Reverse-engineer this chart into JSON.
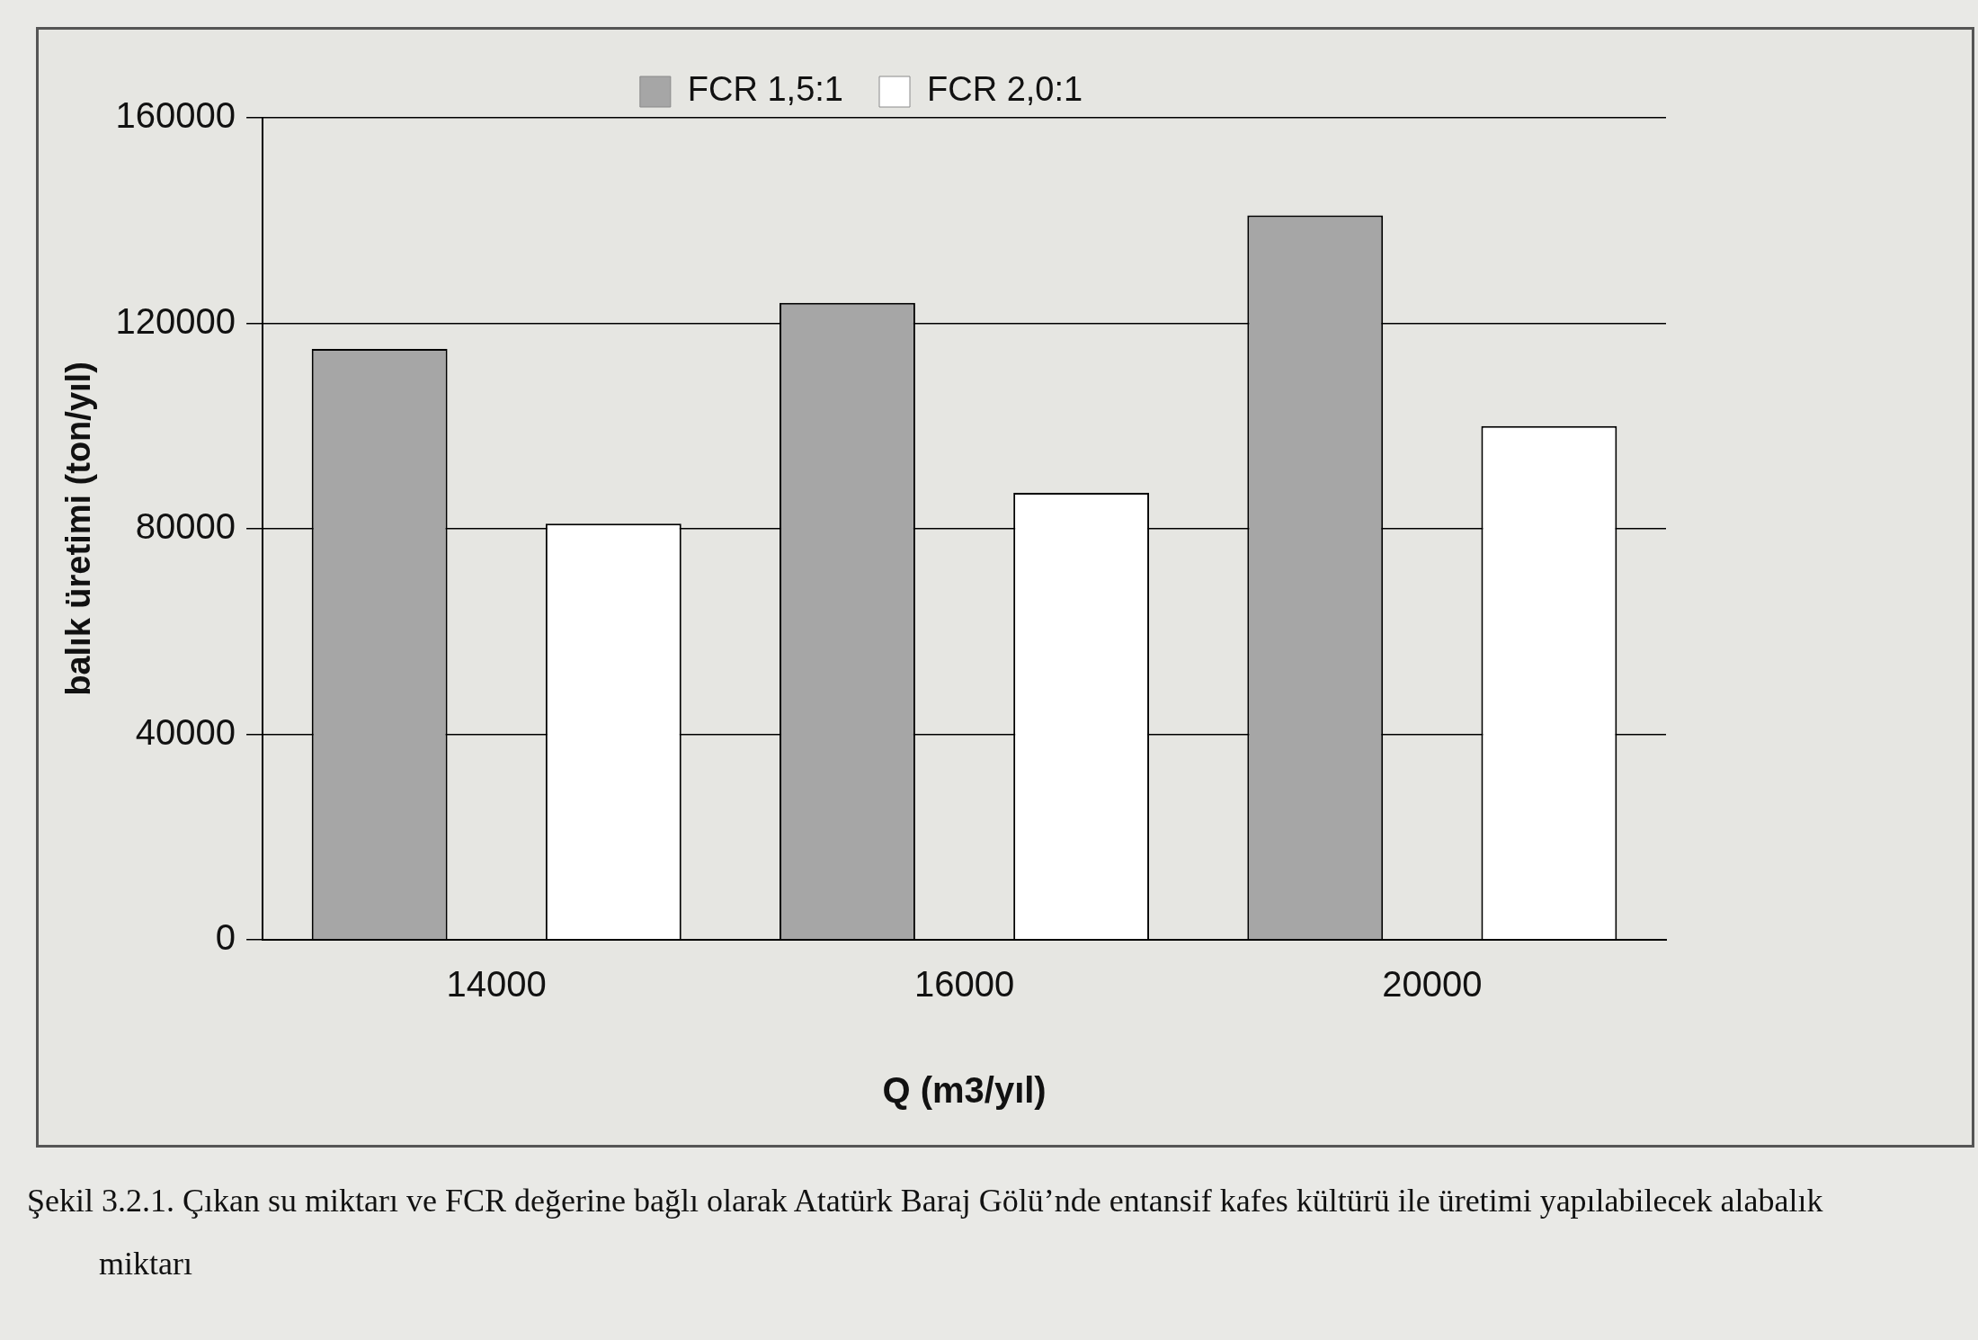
{
  "chart_data": {
    "type": "bar",
    "categories": [
      "14000",
      "16000",
      "20000"
    ],
    "series": [
      {
        "name": "FCR 1,5:1",
        "color": "#a6a6a6",
        "values": [
          115000,
          124000,
          141000
        ]
      },
      {
        "name": "FCR 2,0:1",
        "color": "#ffffff",
        "values": [
          81000,
          87000,
          100000
        ]
      }
    ],
    "xlabel": "Q (m3/yıl)",
    "ylabel": "balık üretimi (ton/yıl)",
    "ylim": [
      0,
      160000
    ],
    "yticks": [
      0,
      40000,
      80000,
      120000,
      160000
    ],
    "grid": "y",
    "legend": "top",
    "annotations": [
      "Şekil 3.2.1. Çıkan su miktarı ve FCR değerine bağlı olarak Atatürk Baraj Gölü’nde entansif kafes kültürü ile üretimi yapılabilecek alabalık miktarı"
    ]
  }
}
